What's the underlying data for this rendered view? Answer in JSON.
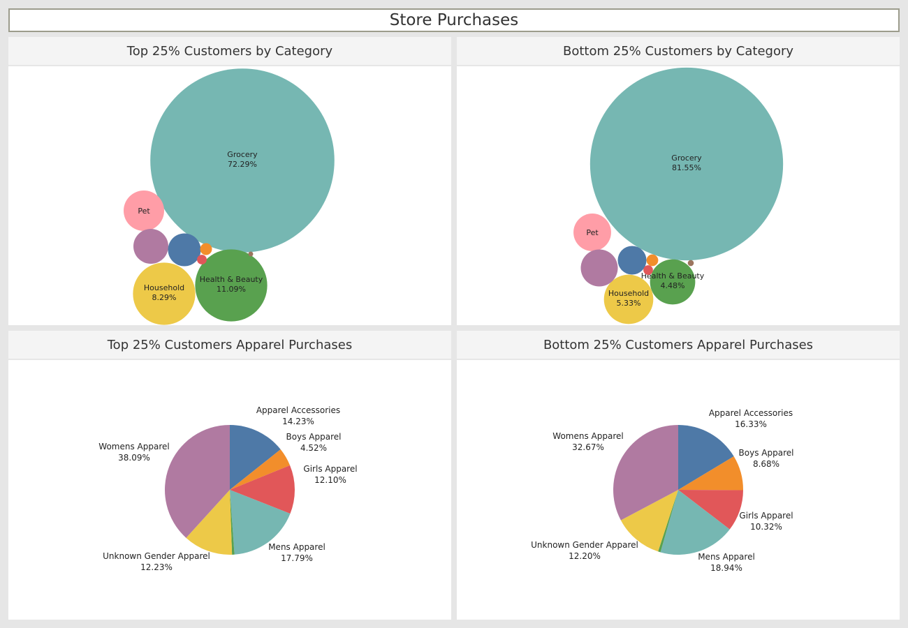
{
  "dashboard": {
    "title": "Store Purchases"
  },
  "colors": {
    "Grocery": "#76b7b2",
    "Pet": "#ff9da7",
    "Household": "#edc948",
    "Health & Beauty": "#59a14f",
    "Womens Apparel": "#b07aa1",
    "Apparel Accessories": "#4e79a7",
    "Boys Apparel": "#f28e2b",
    "Girls Apparel": "#e15759",
    "Mens Apparel": "#76b7b2",
    "Unknown Gender Apparel": "#edc948",
    "Other": "#9c755f"
  },
  "chart_data": [
    {
      "type": "bubble",
      "title": "Top 25% Customers by Category",
      "items": [
        {
          "label": "Grocery",
          "value": 72.29,
          "value_label": "72.29%"
        },
        {
          "label": "Health & Beauty",
          "value": 11.09,
          "value_label": "11.09%"
        },
        {
          "label": "Household",
          "value": 8.29,
          "value_label": "8.29%"
        },
        {
          "label": "Pet",
          "value": 3.5
        },
        {
          "color": "Womens Apparel",
          "value": 2.6
        },
        {
          "color": "Apparel Accessories",
          "value": 2.3
        },
        {
          "color": "Boys Apparel",
          "value": 0.3
        },
        {
          "color": "Girls Apparel",
          "value": 0.2
        },
        {
          "color": "Other",
          "value": 0.05
        }
      ]
    },
    {
      "type": "bubble",
      "title": "Bottom 25% Customers by Category",
      "items": [
        {
          "label": "Grocery",
          "value": 81.55,
          "value_label": "81.55%"
        },
        {
          "label": "Household",
          "value": 5.33,
          "value_label": "5.33%"
        },
        {
          "label": "Health & Beauty",
          "value": 4.48,
          "value_label": "4.48%"
        },
        {
          "label": "Pet",
          "value": 3.1
        },
        {
          "color": "Womens Apparel",
          "value": 3.0
        },
        {
          "color": "Apparel Accessories",
          "value": 1.8
        },
        {
          "color": "Boys Apparel",
          "value": 0.3
        },
        {
          "color": "Girls Apparel",
          "value": 0.2
        },
        {
          "color": "Other",
          "value": 0.08
        }
      ]
    },
    {
      "type": "pie",
      "title": "Top 25% Customers Apparel Purchases",
      "slices": [
        {
          "label": "Apparel Accessories",
          "value": 14.23,
          "value_label": "14.23%"
        },
        {
          "label": "Boys Apparel",
          "value": 4.52,
          "value_label": "4.52%"
        },
        {
          "label": "Girls Apparel",
          "value": 12.1,
          "value_label": "12.10%"
        },
        {
          "label": "Mens Apparel",
          "value": 17.79,
          "value_label": "17.79%"
        },
        {
          "color": "Health & Beauty",
          "value": 0.6
        },
        {
          "label": "Unknown Gender Apparel",
          "value": 12.23,
          "value_label": "12.23%"
        },
        {
          "label": "Womens Apparel",
          "value": 38.09,
          "value_label": "38.09%"
        }
      ]
    },
    {
      "type": "pie",
      "title": "Bottom 25% Customers Apparel Purchases",
      "slices": [
        {
          "label": "Apparel Accessories",
          "value": 16.33,
          "value_label": "16.33%"
        },
        {
          "label": "Boys Apparel",
          "value": 8.68,
          "value_label": "8.68%"
        },
        {
          "label": "Girls Apparel",
          "value": 10.32,
          "value_label": "10.32%"
        },
        {
          "label": "Mens Apparel",
          "value": 18.94,
          "value_label": "18.94%"
        },
        {
          "color": "Health & Beauty",
          "value": 0.6
        },
        {
          "label": "Unknown Gender Apparel",
          "value": 12.2,
          "value_label": "12.20%"
        },
        {
          "label": "Womens Apparel",
          "value": 32.67,
          "value_label": "32.67%"
        }
      ]
    }
  ]
}
